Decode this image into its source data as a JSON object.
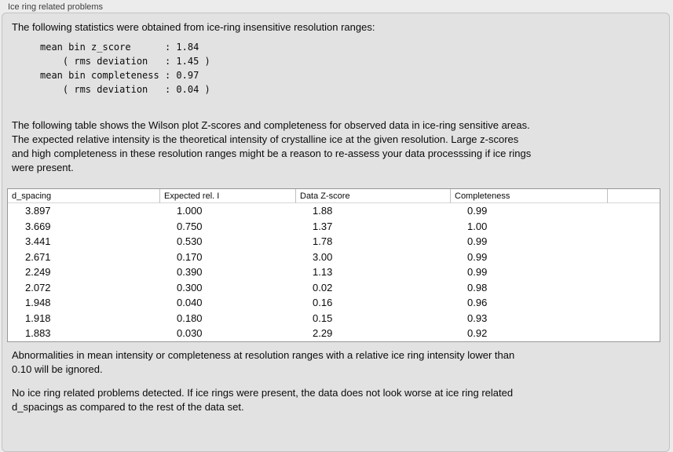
{
  "window": {
    "title": "Ice ring related problems"
  },
  "intro": "The following statistics were obtained from ice-ring insensitive resolution ranges:",
  "stats_block": "mean bin z_score      : 1.84\n    ( rms deviation   : 1.45 )\nmean bin completeness : 0.97\n    ( rms deviation   : 0.04 )",
  "table_description": "The following table shows the Wilson plot Z-scores and completeness for observed data in ice-ring sensitive areas.\nThe expected relative intensity is the theoretical intensity of crystalline ice at the given resolution. Large z-scores\nand high completeness in these resolution ranges might be a reason to re-assess your data processsing if ice rings\nwere present.",
  "table": {
    "headers": [
      "d_spacing",
      "Expected rel. I",
      "Data Z-score",
      "Completeness",
      ""
    ],
    "rows": [
      [
        "3.897",
        "1.000",
        "1.88",
        "0.99",
        ""
      ],
      [
        "3.669",
        "0.750",
        "1.37",
        "1.00",
        ""
      ],
      [
        "3.441",
        "0.530",
        "1.78",
        "0.99",
        ""
      ],
      [
        "2.671",
        "0.170",
        "3.00",
        "0.99",
        ""
      ],
      [
        "2.249",
        "0.390",
        "1.13",
        "0.99",
        ""
      ],
      [
        "2.072",
        "0.300",
        "0.02",
        "0.98",
        ""
      ],
      [
        "1.948",
        "0.040",
        "0.16",
        "0.96",
        ""
      ],
      [
        "1.918",
        "0.180",
        "0.15",
        "0.93",
        ""
      ],
      [
        "1.883",
        "0.030",
        "2.29",
        "0.92",
        ""
      ]
    ]
  },
  "ignore_note": "Abnormalities in mean intensity or completeness at resolution ranges with a relative ice ring intensity lower than\n0.10 will be ignored.",
  "conclusion": "No ice ring related problems detected. If ice rings were present, the data does not look worse at ice ring related\nd_spacings as compared to the rest of the data set."
}
